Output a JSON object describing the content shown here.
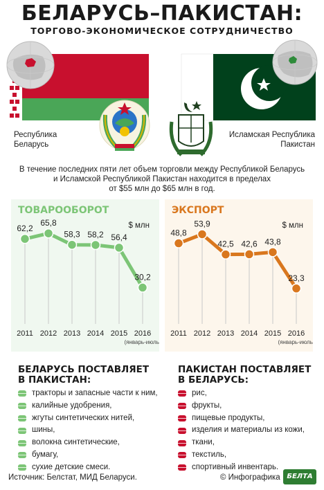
{
  "header": {
    "title": "БЕЛАРУСЬ–ПАКИСТАН:",
    "subtitle": "ТОРГОВО-ЭКОНОМИЧЕСКОЕ СОТРУДНИЧЕСТВО"
  },
  "countries": {
    "left_label_1": "Республика",
    "left_label_2": "Беларусь",
    "right_label_1": "Исламская Республика",
    "right_label_2": "Пакистан"
  },
  "intro": {
    "line1": "В течение последних пяти лет объем торговли между Республикой Беларусь",
    "line2": "и Исламской Республикой Пакистан находится в пределах",
    "line3": "от $55 млн до $65 млн в год."
  },
  "colors": {
    "green": "#7cc576",
    "orange": "#d9771e",
    "red": "#c8102e",
    "pakistan_green": "#01411c"
  },
  "chart_data": [
    {
      "type": "line",
      "title": "ТОВАРООБОРОТ",
      "unit": "$ млн",
      "categories": [
        "2011",
        "2012",
        "2013",
        "2014",
        "2015",
        "2016"
      ],
      "category_note": "(январь-июль)",
      "values": [
        62.2,
        65.8,
        58.3,
        58.2,
        56.4,
        30.2
      ],
      "value_labels": [
        "62,2",
        "65,8",
        "58,3",
        "58,2",
        "56,4",
        "30,2"
      ],
      "ylim": [
        20,
        70
      ],
      "color": "#7cc576"
    },
    {
      "type": "line",
      "title": "ЭКСПОРТ",
      "unit": "$ млн",
      "categories": [
        "2011",
        "2012",
        "2013",
        "2014",
        "2015",
        "2016"
      ],
      "category_note": "(январь-июль)",
      "values": [
        48.8,
        53.9,
        42.5,
        42.6,
        43.8,
        23.3
      ],
      "value_labels": [
        "48,8",
        "53,9",
        "42,5",
        "42,6",
        "43,8",
        "23,3"
      ],
      "ylim": [
        15,
        58
      ],
      "color": "#d9771e"
    }
  ],
  "belarus_exports": {
    "title_1": "БЕЛАРУСЬ ПОСТАВЛЯЕТ",
    "title_2": "В ПАКИСТАН:",
    "items": [
      "тракторы и запасные части к ним,",
      "калийные удобрения,",
      "жгуты синтетических нитей,",
      "шины,",
      "волокна синтетические,",
      "бумагу,",
      "сухие детские смеси."
    ]
  },
  "pakistan_exports": {
    "title_1": "ПАКИСТАН ПОСТАВЛЯЕТ",
    "title_2": "В БЕЛАРУСЬ:",
    "items": [
      "рис,",
      "фрукты,",
      "пищевые продукты,",
      "изделия и материалы из кожи,",
      "ткани,",
      "текстиль,",
      "спортивный инвентарь."
    ]
  },
  "footer": {
    "source": "Источник: Белстат, МИД Беларуси.",
    "credit": "© Инфографика",
    "logo": "БЕЛТА"
  }
}
